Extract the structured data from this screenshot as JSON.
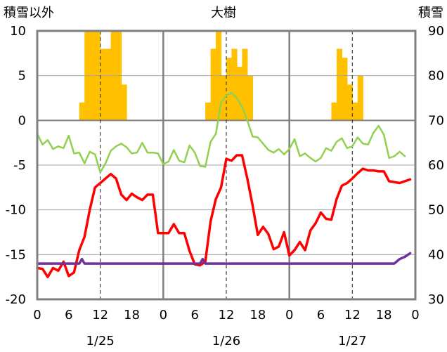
{
  "chart_data": {
    "type": "bar+line",
    "title": "大樹",
    "left_axis_label": "積雪以外",
    "right_axis_label": "積雪",
    "left_axis": {
      "min": -20,
      "max": 10,
      "ticks": [
        10,
        5,
        0,
        -5,
        -10,
        -15,
        -20
      ]
    },
    "right_axis": {
      "min": 30,
      "max": 90,
      "ticks": [
        90,
        80,
        70,
        60,
        50,
        40,
        30
      ]
    },
    "bar_panel": {
      "min": 0,
      "max": 10
    },
    "x_axis": {
      "min": 0,
      "max": 72,
      "tick_hours": [
        0,
        6,
        12,
        18,
        24,
        30,
        36,
        42,
        48,
        54,
        60,
        66,
        72
      ],
      "tick_labels": [
        "0",
        "6",
        "12",
        "18",
        "0",
        "6",
        "12",
        "18",
        "0",
        "6",
        "12",
        "18",
        "0"
      ],
      "day_labels": [
        {
          "label": "1/25",
          "hour": 12
        },
        {
          "label": "1/26",
          "hour": 36
        },
        {
          "label": "1/27",
          "hour": 60
        }
      ]
    },
    "grid": {
      "day_separators": [
        24,
        48
      ],
      "noon_dashed": [
        12,
        36,
        60
      ]
    },
    "colors": {
      "precip_bars": "#FFC000",
      "temperature": "#FF0000",
      "wind": "#92D050",
      "snow_depth": "#7030A0",
      "frame": "#808080"
    },
    "series": [
      {
        "kind": "bar",
        "axis": "bar_panel",
        "color_key": "precip_bars",
        "points": [
          [
            8,
            2
          ],
          [
            9,
            10
          ],
          [
            10,
            10
          ],
          [
            11,
            10
          ],
          [
            12,
            8
          ],
          [
            13,
            8
          ],
          [
            14,
            10
          ],
          [
            15,
            10
          ],
          [
            16,
            4
          ],
          [
            32,
            2
          ],
          [
            33,
            8
          ],
          [
            34,
            10
          ],
          [
            35,
            5
          ],
          [
            36,
            7
          ],
          [
            37,
            8
          ],
          [
            38,
            6
          ],
          [
            39,
            8
          ],
          [
            40,
            5
          ],
          [
            56,
            2
          ],
          [
            57,
            8
          ],
          [
            58,
            7
          ],
          [
            59,
            4
          ],
          [
            60,
            2
          ],
          [
            61,
            5
          ]
        ]
      },
      {
        "kind": "line",
        "axis": "left",
        "color_key": "wind",
        "points": [
          [
            0,
            -1.5
          ],
          [
            1,
            -2.7
          ],
          [
            2,
            -2.2
          ],
          [
            3,
            -3.2
          ],
          [
            4,
            -2.9
          ],
          [
            5,
            -3.1
          ],
          [
            6,
            -1.7
          ],
          [
            7,
            -3.7
          ],
          [
            8,
            -3.6
          ],
          [
            9,
            -4.8
          ],
          [
            10,
            -3.5
          ],
          [
            11,
            -3.8
          ],
          [
            12,
            -5.8
          ],
          [
            13,
            -4.8
          ],
          [
            14,
            -3.4
          ],
          [
            15,
            -2.9
          ],
          [
            16,
            -2.6
          ],
          [
            17,
            -3.0
          ],
          [
            18,
            -3.7
          ],
          [
            19,
            -3.6
          ],
          [
            20,
            -2.5
          ],
          [
            21,
            -3.6
          ],
          [
            22,
            -3.6
          ],
          [
            23,
            -3.7
          ],
          [
            24,
            -4.9
          ],
          [
            25,
            -4.6
          ],
          [
            26,
            -3.3
          ],
          [
            27,
            -4.5
          ],
          [
            28,
            -4.7
          ],
          [
            29,
            -2.8
          ],
          [
            30,
            -3.6
          ],
          [
            31,
            -5.1
          ],
          [
            32,
            -5.2
          ],
          [
            33,
            -2.4
          ],
          [
            34,
            -1.5
          ],
          [
            35,
            2.0
          ],
          [
            36,
            2.8
          ],
          [
            37,
            3.1
          ],
          [
            38,
            2.5
          ],
          [
            39,
            1.5
          ],
          [
            40,
            0.0
          ],
          [
            41,
            -1.8
          ],
          [
            42,
            -1.9
          ],
          [
            43,
            -2.6
          ],
          [
            44,
            -3.3
          ],
          [
            45,
            -3.6
          ],
          [
            46,
            -3.2
          ],
          [
            47,
            -3.8
          ],
          [
            48,
            -3.2
          ],
          [
            49,
            -2.1
          ],
          [
            50,
            -4.0
          ],
          [
            51,
            -3.7
          ],
          [
            52,
            -4.2
          ],
          [
            53,
            -4.6
          ],
          [
            54,
            -4.2
          ],
          [
            55,
            -3.1
          ],
          [
            56,
            -3.4
          ],
          [
            57,
            -2.4
          ],
          [
            58,
            -2.0
          ],
          [
            59,
            -3.1
          ],
          [
            60,
            -2.9
          ],
          [
            61,
            -1.9
          ],
          [
            62,
            -2.6
          ],
          [
            63,
            -2.7
          ],
          [
            64,
            -1.4
          ],
          [
            65,
            -0.6
          ],
          [
            66,
            -1.6
          ],
          [
            67,
            -4.2
          ],
          [
            68,
            -4.0
          ],
          [
            69,
            -3.5
          ],
          [
            70,
            -4.0
          ]
        ]
      },
      {
        "kind": "line",
        "axis": "left",
        "color_key": "temperature",
        "points": [
          [
            0,
            -16.5
          ],
          [
            1,
            -16.6
          ],
          [
            2,
            -17.5
          ],
          [
            3,
            -16.5
          ],
          [
            4,
            -16.8
          ],
          [
            5,
            -15.8
          ],
          [
            6,
            -17.4
          ],
          [
            7,
            -17.0
          ],
          [
            8,
            -14.5
          ],
          [
            9,
            -13.0
          ],
          [
            10,
            -10.0
          ],
          [
            11,
            -7.5
          ],
          [
            12,
            -7.0
          ],
          [
            13,
            -6.5
          ],
          [
            14,
            -6.0
          ],
          [
            15,
            -6.5
          ],
          [
            16,
            -8.3
          ],
          [
            17,
            -8.9
          ],
          [
            18,
            -8.2
          ],
          [
            19,
            -8.6
          ],
          [
            20,
            -8.9
          ],
          [
            21,
            -8.3
          ],
          [
            22,
            -8.3
          ],
          [
            23,
            -12.6
          ],
          [
            24,
            -12.6
          ],
          [
            25,
            -12.6
          ],
          [
            26,
            -11.6
          ],
          [
            27,
            -12.6
          ],
          [
            28,
            -12.6
          ],
          [
            29,
            -14.6
          ],
          [
            30,
            -16.1
          ],
          [
            31,
            -16.2
          ],
          [
            32,
            -15.8
          ],
          [
            33,
            -11.3
          ],
          [
            34,
            -8.8
          ],
          [
            35,
            -7.5
          ],
          [
            36,
            -4.3
          ],
          [
            37,
            -4.5
          ],
          [
            38,
            -3.9
          ],
          [
            39,
            -3.9
          ],
          [
            40,
            -6.5
          ],
          [
            41,
            -9.5
          ],
          [
            42,
            -12.8
          ],
          [
            43,
            -11.9
          ],
          [
            44,
            -12.7
          ],
          [
            45,
            -14.4
          ],
          [
            46,
            -14.1
          ],
          [
            47,
            -12.5
          ],
          [
            48,
            -15.1
          ],
          [
            49,
            -14.5
          ],
          [
            50,
            -13.6
          ],
          [
            51,
            -14.5
          ],
          [
            52,
            -12.3
          ],
          [
            53,
            -11.5
          ],
          [
            54,
            -10.3
          ],
          [
            55,
            -11.0
          ],
          [
            56,
            -11.1
          ],
          [
            57,
            -8.8
          ],
          [
            58,
            -7.3
          ],
          [
            59,
            -7.0
          ],
          [
            60,
            -6.5
          ],
          [
            61,
            -5.9
          ],
          [
            62,
            -5.4
          ],
          [
            63,
            -5.6
          ],
          [
            64,
            -5.6
          ],
          [
            65,
            -5.7
          ],
          [
            66,
            -5.7
          ],
          [
            67,
            -6.8
          ],
          [
            68,
            -6.9
          ],
          [
            69,
            -7.0
          ],
          [
            70,
            -6.8
          ],
          [
            71,
            -6.6
          ]
        ]
      },
      {
        "kind": "line",
        "axis": "right",
        "color_key": "snow_depth",
        "points": [
          [
            0,
            38
          ],
          [
            8,
            38
          ],
          [
            8.5,
            39
          ],
          [
            9,
            38
          ],
          [
            31,
            38
          ],
          [
            31.5,
            39
          ],
          [
            32,
            38
          ],
          [
            68,
            38
          ],
          [
            69,
            39
          ],
          [
            70,
            39.5
          ],
          [
            71,
            40.3
          ]
        ]
      }
    ]
  }
}
